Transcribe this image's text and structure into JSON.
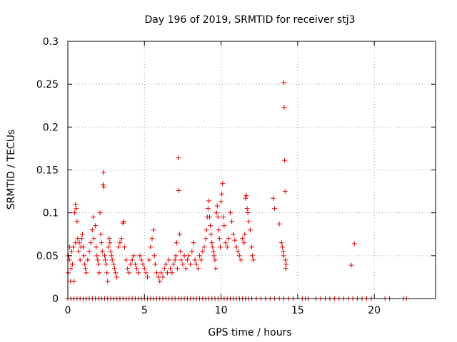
{
  "chart_data": {
    "type": "scatter",
    "title": "Day 196 of 2019, SRMTID for receiver stj3",
    "xlabel": "GPS time / hours",
    "ylabel": "SRMTID / TECUs",
    "xlim": [
      0,
      24
    ],
    "ylim": [
      0,
      0.3
    ],
    "x_ticks": [
      0,
      5,
      10,
      15,
      20
    ],
    "x_tick_labels": [
      "0",
      "5",
      "10",
      "15",
      "20"
    ],
    "y_ticks": [
      0,
      0.05,
      0.1,
      0.15,
      0.2,
      0.25,
      0.3
    ],
    "y_tick_labels": [
      "0",
      "0.05",
      "0.1",
      "0.15",
      "0.2",
      "0.25",
      "0.3"
    ],
    "grid": true,
    "marker": "+",
    "series_color": "#e00000",
    "series": [
      {
        "name": "SRMTID",
        "points": [
          [
            0.02,
            0.03
          ],
          [
            0.05,
            0.05
          ],
          [
            0.1,
            0.045
          ],
          [
            0.12,
            0.06
          ],
          [
            0.18,
            0.02
          ],
          [
            0.2,
            0.035
          ],
          [
            0.25,
            0.055
          ],
          [
            0.3,
            0.04
          ],
          [
            0.35,
            0.06
          ],
          [
            0.4,
            0.02
          ],
          [
            0.45,
            0.1
          ],
          [
            0.5,
            0.11
          ],
          [
            0.5,
            0.065
          ],
          [
            0.55,
            0.105
          ],
          [
            0.6,
            0.09
          ],
          [
            0.65,
            0.07
          ],
          [
            0.7,
            0.055
          ],
          [
            0.75,
            0.065
          ],
          [
            0.8,
            0.045
          ],
          [
            0.85,
            0.06
          ],
          [
            0.9,
            0.07
          ],
          [
            0.95,
            0.075
          ],
          [
            1.0,
            0.06
          ],
          [
            1.05,
            0.05
          ],
          [
            1.1,
            0.04
          ],
          [
            1.15,
            0.035
          ],
          [
            1.2,
            0.03
          ],
          [
            1.3,
            0.045
          ],
          [
            1.4,
            0.055
          ],
          [
            1.5,
            0.065
          ],
          [
            1.6,
            0.08
          ],
          [
            1.65,
            0.095
          ],
          [
            1.7,
            0.07
          ],
          [
            1.8,
            0.085
          ],
          [
            1.85,
            0.06
          ],
          [
            1.9,
            0.05
          ],
          [
            1.95,
            0.045
          ],
          [
            2.0,
            0.04
          ],
          [
            2.05,
            0.03
          ],
          [
            2.1,
            0.1
          ],
          [
            2.15,
            0.075
          ],
          [
            2.2,
            0.065
          ],
          [
            2.25,
            0.055
          ],
          [
            2.3,
            0.133
          ],
          [
            2.32,
            0.147
          ],
          [
            2.35,
            0.13
          ],
          [
            2.4,
            0.05
          ],
          [
            2.45,
            0.045
          ],
          [
            2.5,
            0.04
          ],
          [
            2.55,
            0.03
          ],
          [
            2.6,
            0.02
          ],
          [
            2.65,
            0.06
          ],
          [
            2.7,
            0.07
          ],
          [
            2.75,
            0.065
          ],
          [
            2.8,
            0.055
          ],
          [
            2.85,
            0.05
          ],
          [
            2.9,
            0.045
          ],
          [
            3.0,
            0.04
          ],
          [
            3.05,
            0.035
          ],
          [
            3.1,
            0.03
          ],
          [
            3.2,
            0.025
          ],
          [
            3.3,
            0.06
          ],
          [
            3.4,
            0.065
          ],
          [
            3.5,
            0.07
          ],
          [
            3.6,
            0.088
          ],
          [
            3.65,
            0.09
          ],
          [
            3.7,
            0.06
          ],
          [
            3.8,
            0.045
          ],
          [
            3.9,
            0.035
          ],
          [
            4.0,
            0.03
          ],
          [
            4.1,
            0.04
          ],
          [
            4.2,
            0.045
          ],
          [
            4.3,
            0.05
          ],
          [
            4.4,
            0.04
          ],
          [
            4.5,
            0.035
          ],
          [
            4.6,
            0.03
          ],
          [
            4.7,
            0.05
          ],
          [
            4.8,
            0.045
          ],
          [
            4.9,
            0.04
          ],
          [
            5.0,
            0.035
          ],
          [
            5.1,
            0.03
          ],
          [
            5.2,
            0.025
          ],
          [
            5.3,
            0.045
          ],
          [
            5.4,
            0.06
          ],
          [
            5.5,
            0.07
          ],
          [
            5.6,
            0.08
          ],
          [
            5.65,
            0.05
          ],
          [
            5.7,
            0.04
          ],
          [
            5.8,
            0.03
          ],
          [
            5.9,
            0.025
          ],
          [
            6.0,
            0.02
          ],
          [
            6.1,
            0.03
          ],
          [
            6.2,
            0.025
          ],
          [
            6.3,
            0.035
          ],
          [
            6.4,
            0.04
          ],
          [
            6.5,
            0.03
          ],
          [
            6.6,
            0.045
          ],
          [
            6.7,
            0.035
          ],
          [
            6.8,
            0.03
          ],
          [
            6.9,
            0.04
          ],
          [
            7.0,
            0.045
          ],
          [
            7.05,
            0.05
          ],
          [
            7.1,
            0.065
          ],
          [
            7.15,
            0.035
          ],
          [
            7.2,
            0.164
          ],
          [
            7.25,
            0.126
          ],
          [
            7.3,
            0.075
          ],
          [
            7.35,
            0.055
          ],
          [
            7.4,
            0.045
          ],
          [
            7.5,
            0.04
          ],
          [
            7.6,
            0.05
          ],
          [
            7.7,
            0.035
          ],
          [
            7.8,
            0.045
          ],
          [
            7.9,
            0.05
          ],
          [
            8.0,
            0.04
          ],
          [
            8.1,
            0.055
          ],
          [
            8.2,
            0.065
          ],
          [
            8.3,
            0.045
          ],
          [
            8.4,
            0.04
          ],
          [
            8.5,
            0.035
          ],
          [
            8.6,
            0.05
          ],
          [
            8.7,
            0.045
          ],
          [
            8.8,
            0.055
          ],
          [
            8.9,
            0.06
          ],
          [
            9.0,
            0.07
          ],
          [
            9.05,
            0.08
          ],
          [
            9.1,
            0.095
          ],
          [
            9.15,
            0.105
          ],
          [
            9.2,
            0.114
          ],
          [
            9.25,
            0.095
          ],
          [
            9.3,
            0.085
          ],
          [
            9.35,
            0.075
          ],
          [
            9.4,
            0.065
          ],
          [
            9.45,
            0.06
          ],
          [
            9.5,
            0.055
          ],
          [
            9.55,
            0.05
          ],
          [
            9.6,
            0.045
          ],
          [
            9.65,
            0.035
          ],
          [
            9.7,
            0.1
          ],
          [
            9.75,
            0.108
          ],
          [
            9.8,
            0.095
          ],
          [
            9.85,
            0.08
          ],
          [
            9.9,
            0.07
          ],
          [
            9.95,
            0.06
          ],
          [
            10.0,
            0.113
          ],
          [
            10.05,
            0.122
          ],
          [
            10.1,
            0.134
          ],
          [
            10.15,
            0.095
          ],
          [
            10.2,
            0.085
          ],
          [
            10.3,
            0.065
          ],
          [
            10.4,
            0.06
          ],
          [
            10.5,
            0.07
          ],
          [
            10.6,
            0.1
          ],
          [
            10.7,
            0.09
          ],
          [
            10.8,
            0.075
          ],
          [
            10.9,
            0.068
          ],
          [
            11.0,
            0.06
          ],
          [
            11.1,
            0.055
          ],
          [
            11.2,
            0.05
          ],
          [
            11.3,
            0.045
          ],
          [
            11.4,
            0.07
          ],
          [
            11.5,
            0.065
          ],
          [
            11.55,
            0.075
          ],
          [
            11.6,
            0.117
          ],
          [
            11.65,
            0.12
          ],
          [
            11.7,
            0.105
          ],
          [
            11.75,
            0.1
          ],
          [
            11.8,
            0.09
          ],
          [
            11.9,
            0.08
          ],
          [
            12.0,
            0.06
          ],
          [
            12.05,
            0.05
          ],
          [
            12.1,
            0.045
          ],
          [
            13.4,
            0.117
          ],
          [
            13.5,
            0.105
          ],
          [
            13.8,
            0.087
          ],
          [
            13.95,
            0.065
          ],
          [
            14.0,
            0.06
          ],
          [
            14.05,
            0.055
          ],
          [
            14.08,
            0.05
          ],
          [
            14.1,
            0.252
          ],
          [
            14.12,
            0.223
          ],
          [
            14.15,
            0.161
          ],
          [
            14.18,
            0.125
          ],
          [
            14.2,
            0.045
          ],
          [
            14.22,
            0.035
          ],
          [
            14.25,
            0.04
          ],
          [
            18.5,
            0.039
          ],
          [
            18.7,
            0.064
          ],
          [
            0.0,
            0
          ],
          [
            0.2,
            0
          ],
          [
            0.4,
            0
          ],
          [
            0.6,
            0
          ],
          [
            0.8,
            0
          ],
          [
            1.0,
            0
          ],
          [
            1.2,
            0
          ],
          [
            1.4,
            0
          ],
          [
            1.6,
            0
          ],
          [
            1.8,
            0
          ],
          [
            2.0,
            0
          ],
          [
            2.2,
            0
          ],
          [
            2.4,
            0
          ],
          [
            2.6,
            0
          ],
          [
            2.8,
            0
          ],
          [
            3.0,
            0
          ],
          [
            3.2,
            0
          ],
          [
            3.4,
            0
          ],
          [
            3.6,
            0
          ],
          [
            3.8,
            0
          ],
          [
            4.0,
            0
          ],
          [
            4.2,
            0
          ],
          [
            4.4,
            0
          ],
          [
            4.6,
            0
          ],
          [
            4.8,
            0
          ],
          [
            5.0,
            0
          ],
          [
            5.2,
            0
          ],
          [
            5.4,
            0
          ],
          [
            5.6,
            0
          ],
          [
            5.8,
            0
          ],
          [
            6.0,
            0
          ],
          [
            6.2,
            0
          ],
          [
            6.4,
            0
          ],
          [
            6.6,
            0
          ],
          [
            6.8,
            0
          ],
          [
            7.0,
            0
          ],
          [
            7.2,
            0
          ],
          [
            7.4,
            0
          ],
          [
            7.6,
            0
          ],
          [
            7.8,
            0
          ],
          [
            8.0,
            0
          ],
          [
            8.2,
            0
          ],
          [
            8.4,
            0
          ],
          [
            8.6,
            0
          ],
          [
            8.8,
            0
          ],
          [
            9.0,
            0
          ],
          [
            9.2,
            0
          ],
          [
            9.4,
            0
          ],
          [
            9.6,
            0
          ],
          [
            9.8,
            0
          ],
          [
            10.0,
            0
          ],
          [
            10.2,
            0
          ],
          [
            10.4,
            0
          ],
          [
            10.6,
            0
          ],
          [
            10.8,
            0
          ],
          [
            11.0,
            0
          ],
          [
            11.2,
            0
          ],
          [
            11.4,
            0
          ],
          [
            11.6,
            0
          ],
          [
            11.8,
            0
          ],
          [
            12.0,
            0
          ],
          [
            12.3,
            0
          ],
          [
            12.6,
            0
          ],
          [
            12.9,
            0
          ],
          [
            13.2,
            0
          ],
          [
            13.5,
            0
          ],
          [
            13.8,
            0
          ],
          [
            14.1,
            0
          ],
          [
            14.4,
            0
          ],
          [
            14.7,
            0
          ],
          [
            15.3,
            0
          ],
          [
            15.5,
            0
          ],
          [
            15.7,
            0
          ],
          [
            16.2,
            0
          ],
          [
            16.5,
            0
          ],
          [
            16.8,
            0
          ],
          [
            17.1,
            0
          ],
          [
            17.4,
            0
          ],
          [
            17.7,
            0
          ],
          [
            18.0,
            0
          ],
          [
            18.3,
            0
          ],
          [
            18.6,
            0
          ],
          [
            18.9,
            0
          ],
          [
            19.2,
            0
          ],
          [
            19.5,
            0
          ],
          [
            19.8,
            0
          ],
          [
            20.7,
            0
          ],
          [
            21.0,
            0
          ],
          [
            21.9,
            0
          ],
          [
            22.1,
            0
          ]
        ]
      }
    ]
  }
}
